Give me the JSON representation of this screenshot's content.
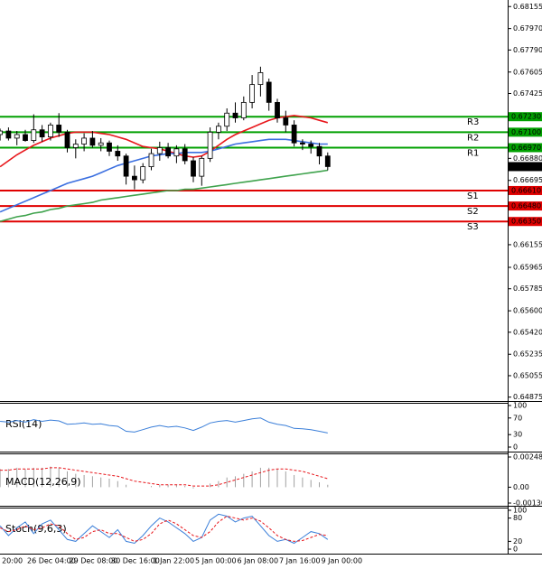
{
  "chart_data": [
    {
      "type": "candlestick",
      "categories": [
        "20:00",
        null,
        null,
        "26 Dec 04:00",
        null,
        null,
        null,
        null,
        "29 Dec 08:00",
        null,
        null,
        null,
        null,
        "30 Dec 16:00",
        null,
        null,
        null,
        null,
        "1 Jan 22:00",
        null,
        null,
        null,
        null,
        "5 Jan 00:00",
        null,
        null,
        null,
        null,
        "6 Jan 08:00",
        null,
        null,
        null,
        null,
        "7 Jan 16:00",
        null,
        null,
        null,
        null,
        "9 Jan 00:00",
        null
      ],
      "open": [
        0.6708,
        0.6711,
        0.6705,
        0.6708,
        0.6703,
        0.6712,
        0.6706,
        0.6716,
        0.671,
        0.6697,
        0.67,
        0.6705,
        0.6699,
        0.6701,
        0.6694,
        0.669,
        0.6673,
        0.667,
        0.6681,
        0.6692,
        0.6697,
        0.669,
        0.6696,
        0.6686,
        0.6673,
        0.6688,
        0.671,
        0.6715,
        0.6726,
        0.6722,
        0.6735,
        0.675,
        0.6752,
        0.6735,
        0.6722,
        0.6716,
        0.6701,
        0.67,
        0.6698,
        0.669
      ],
      "high": [
        0.6713,
        0.6714,
        0.6711,
        0.6712,
        0.6725,
        0.6716,
        0.6718,
        0.6726,
        0.6712,
        0.6704,
        0.6709,
        0.6711,
        0.6705,
        0.6703,
        0.6699,
        0.6692,
        0.6682,
        0.6684,
        0.6696,
        0.6702,
        0.6701,
        0.6699,
        0.67,
        0.6689,
        0.669,
        0.6714,
        0.6718,
        0.673,
        0.6735,
        0.674,
        0.6758,
        0.6765,
        0.6755,
        0.6738,
        0.6728,
        0.672,
        0.6704,
        0.6703,
        0.6701,
        0.6693
      ],
      "low": [
        0.6703,
        0.6703,
        0.6699,
        0.6702,
        0.6701,
        0.6702,
        0.6703,
        0.6706,
        0.6693,
        0.6688,
        0.6694,
        0.6697,
        0.6694,
        0.669,
        0.6686,
        0.6666,
        0.6662,
        0.6667,
        0.6678,
        0.6686,
        0.6688,
        0.6684,
        0.6683,
        0.6668,
        0.6665,
        0.6685,
        0.6704,
        0.6711,
        0.6718,
        0.672,
        0.673,
        0.674,
        0.6728,
        0.6718,
        0.671,
        0.6698,
        0.6695,
        0.6692,
        0.6683,
        0.6678
      ],
      "close": [
        0.6711,
        0.6705,
        0.6708,
        0.6703,
        0.6712,
        0.6706,
        0.6716,
        0.671,
        0.6697,
        0.67,
        0.6705,
        0.6699,
        0.6701,
        0.6694,
        0.669,
        0.6673,
        0.667,
        0.6681,
        0.6692,
        0.6697,
        0.669,
        0.6696,
        0.6686,
        0.6673,
        0.6688,
        0.671,
        0.6715,
        0.6726,
        0.6722,
        0.6735,
        0.675,
        0.676,
        0.6735,
        0.6722,
        0.6716,
        0.6701,
        0.67,
        0.6698,
        0.669,
        0.66811
      ],
      "up_color": "#ffffff",
      "down_color": "#000000",
      "moving_averages": [
        {
          "color": "#e8161b",
          "values": [
            0.6681,
            0.6686,
            0.6691,
            0.6695,
            0.6699,
            0.6702,
            0.6705,
            0.6707,
            0.6709,
            0.671,
            0.671,
            0.671,
            0.6709,
            0.6708,
            0.6706,
            0.6704,
            0.6701,
            0.6698,
            0.6697,
            0.6696,
            0.6694,
            0.6692,
            0.669,
            0.6689,
            0.669,
            0.6694,
            0.6699,
            0.6704,
            0.6708,
            0.6711,
            0.6714,
            0.6717,
            0.672,
            0.6722,
            0.6723,
            0.6724,
            0.6723,
            0.6722,
            0.672,
            0.6718
          ]
        },
        {
          "color": "#3b6fe0",
          "values": [
            0.6643,
            0.6646,
            0.6649,
            0.6652,
            0.6655,
            0.6658,
            0.6661,
            0.6664,
            0.6667,
            0.6669,
            0.6671,
            0.6673,
            0.6676,
            0.6679,
            0.6682,
            0.6684,
            0.6686,
            0.6688,
            0.669,
            0.6691,
            0.6692,
            0.6692,
            0.6693,
            0.6693,
            0.6693,
            0.6694,
            0.6696,
            0.6698,
            0.67,
            0.6701,
            0.6702,
            0.6703,
            0.6704,
            0.6704,
            0.6704,
            0.6703,
            0.6702,
            0.6701,
            0.67,
            0.67
          ]
        },
        {
          "color": "#3fa34d",
          "values": [
            0.6635,
            0.6637,
            0.6639,
            0.664,
            0.6642,
            0.6643,
            0.6645,
            0.6646,
            0.6648,
            0.6649,
            0.665,
            0.6651,
            0.6653,
            0.6654,
            0.6655,
            0.6656,
            0.6657,
            0.6658,
            0.6659,
            0.666,
            0.6661,
            0.6661,
            0.6662,
            0.6662,
            0.6663,
            0.6664,
            0.6665,
            0.6666,
            0.6667,
            0.6668,
            0.6669,
            0.667,
            0.6671,
            0.6672,
            0.6673,
            0.6674,
            0.6675,
            0.6676,
            0.6677,
            0.6678
          ]
        }
      ],
      "levels": [
        {
          "name": "R3",
          "value": 0.6723,
          "label": "0.67230",
          "color": "#00a000"
        },
        {
          "name": "R2",
          "value": 0.671,
          "label": "0.67100",
          "color": "#00a000"
        },
        {
          "name": "R1",
          "value": 0.6697,
          "label": "0.66970",
          "color": "#00a000"
        },
        {
          "name": "S1",
          "value": 0.6661,
          "label": "0.66610",
          "color": "#e00000"
        },
        {
          "name": "S2",
          "value": 0.6648,
          "label": "0.66480",
          "color": "#e00000"
        },
        {
          "name": "S3",
          "value": 0.6635,
          "label": "0.66350",
          "color": "#e00000"
        }
      ],
      "ylim": [
        0.6485,
        0.6821
      ],
      "yticks": [
        0.68155,
        {
          "value": 0.6797,
          "label": "0.67970"
        },
        {
          "value": 0.6779,
          "label": "0.67790"
        },
        0.67605,
        0.67425,
        {
          "value": 0.6688,
          "label": "0.66880"
        },
        0.66695,
        0.66155,
        0.65965,
        0.65785,
        {
          "value": 0.656,
          "label": "0.65600"
        },
        {
          "value": 0.6542,
          "label": "0.65420"
        },
        0.65235,
        0.65055,
        0.64875
      ]
    },
    {
      "type": "line",
      "title": "RSI(14)",
      "series": [
        {
          "color": "#3b7fd9",
          "values": [
            62,
            60,
            64,
            60,
            66,
            62,
            65,
            63,
            55,
            56,
            58,
            55,
            56,
            52,
            50,
            38,
            36,
            42,
            48,
            52,
            48,
            50,
            46,
            40,
            48,
            58,
            62,
            64,
            60,
            64,
            68,
            70,
            60,
            55,
            52,
            45,
            44,
            42,
            38,
            34
          ]
        }
      ],
      "ylim": [
        0,
        100
      ],
      "yticks": [
        100,
        70,
        30,
        0
      ]
    },
    {
      "type": "macd",
      "title": "MACD(12,26,9)",
      "histogram": {
        "color": "#a0a0a0",
        "values": [
          0.0015,
          0.0015,
          0.0016,
          0.0015,
          0.0016,
          0.0016,
          0.0017,
          0.0016,
          0.0013,
          0.0011,
          0.001,
          0.0009,
          0.0008,
          0.0007,
          0.0005,
          0.0002,
          0.0,
          0.0,
          0.0001,
          0.0002,
          0.0002,
          0.0002,
          0.0001,
          -0.0001,
          0.0,
          0.0003,
          0.0005,
          0.0008,
          0.0009,
          0.0011,
          0.0013,
          0.0016,
          0.0016,
          0.0015,
          0.0013,
          0.001,
          0.0008,
          0.0006,
          0.0004,
          0.0002
        ]
      },
      "signal": {
        "color": "#e8161b",
        "values": [
          0.0014,
          0.0014,
          0.0015,
          0.0015,
          0.0015,
          0.0015,
          0.0016,
          0.0016,
          0.0015,
          0.0014,
          0.0013,
          0.0012,
          0.0011,
          0.001,
          0.0009,
          0.0007,
          0.0005,
          0.0004,
          0.0003,
          0.0002,
          0.0002,
          0.0002,
          0.0002,
          0.0001,
          0.0001,
          0.0001,
          0.0002,
          0.0004,
          0.0006,
          0.0008,
          0.001,
          0.0012,
          0.0014,
          0.0015,
          0.0015,
          0.0014,
          0.0013,
          0.0011,
          0.0009,
          0.0007
        ]
      },
      "ylim": [
        -0.001306,
        0.002484
      ],
      "yticks": [
        0.002484,
        {
          "value": 0,
          "label": "0.00"
        },
        -0.001306
      ]
    },
    {
      "type": "line",
      "title": "Stoch(9,6,3)",
      "series": [
        {
          "color": "#3b7fd9",
          "dashed": false,
          "values": [
            60,
            35,
            55,
            70,
            40,
            65,
            75,
            50,
            25,
            20,
            40,
            60,
            45,
            30,
            50,
            20,
            15,
            35,
            60,
            80,
            70,
            55,
            40,
            20,
            30,
            75,
            90,
            85,
            70,
            80,
            85,
            60,
            35,
            20,
            25,
            15,
            30,
            45,
            40,
            25
          ]
        },
        {
          "color": "#e8161b",
          "dashed": true,
          "values": [
            55,
            45,
            50,
            60,
            50,
            55,
            65,
            60,
            40,
            25,
            30,
            45,
            50,
            40,
            40,
            30,
            20,
            25,
            40,
            65,
            75,
            65,
            50,
            35,
            30,
            45,
            70,
            85,
            80,
            75,
            80,
            72,
            55,
            35,
            25,
            20,
            22,
            30,
            38,
            35
          ]
        }
      ],
      "ylim": [
        0,
        100
      ],
      "yticks": [
        100,
        80,
        20,
        0
      ]
    }
  ]
}
